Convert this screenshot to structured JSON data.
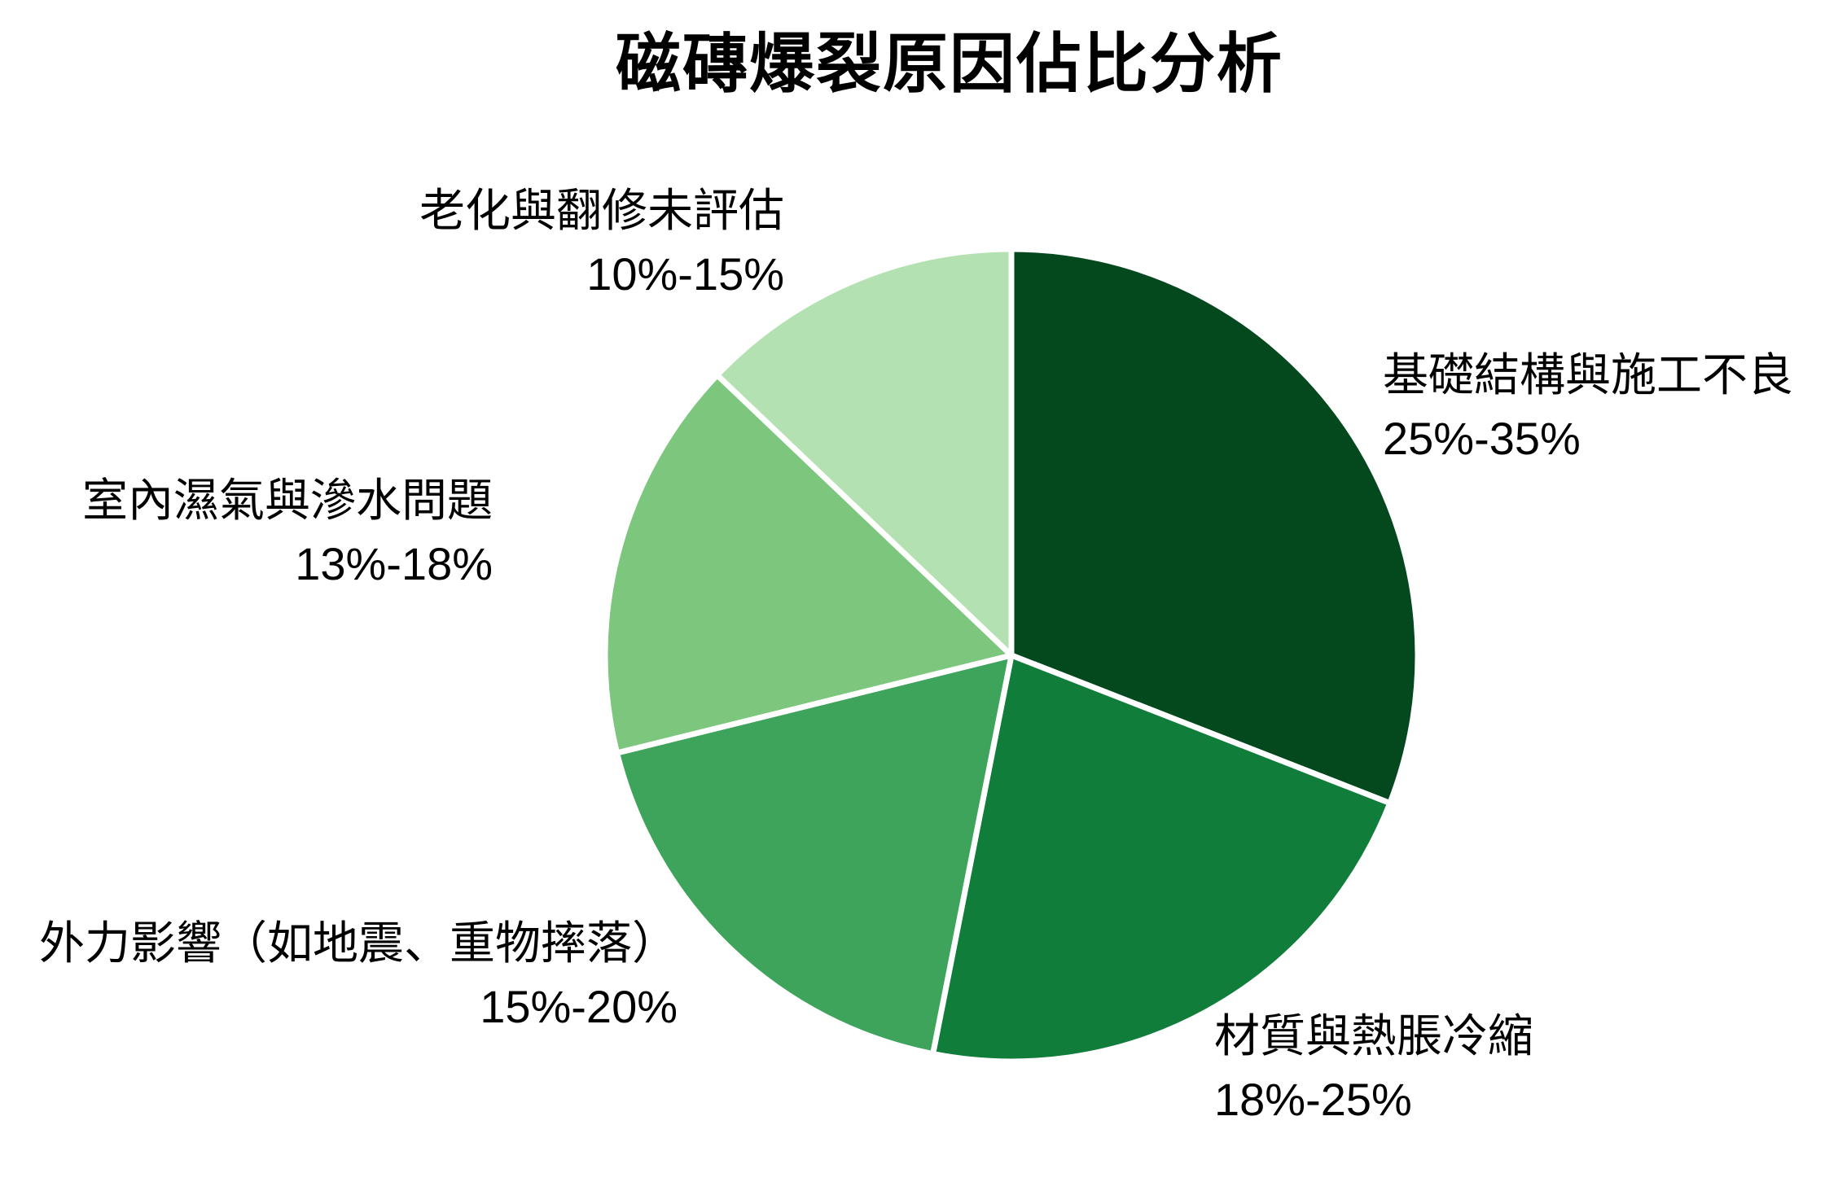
{
  "chart_data": {
    "type": "pie",
    "title": "磁磚爆裂原因佔比分析",
    "legend": "none",
    "background": "#ffffff",
    "slice_border_color": "#ffffff",
    "start_angle_deg": 0,
    "direction": "clockwise",
    "slices": [
      {
        "label": "基礎結構與施工不良",
        "range": "25%-35%",
        "value_mid": 30,
        "color": "#03491d"
      },
      {
        "label": "材質與熱脹冷縮",
        "range": "18%-25%",
        "value_mid": 21.5,
        "color": "#107d3b"
      },
      {
        "label": "外力影響（如地震、重物摔落）",
        "range": "15%-20%",
        "value_mid": 17.5,
        "color": "#3ea45c"
      },
      {
        "label": "室內濕氣與滲水問題",
        "range": "13%-18%",
        "value_mid": 15.5,
        "color": "#7cc67e"
      },
      {
        "label": "老化與翻修未評估",
        "range": "10%-15%",
        "value_mid": 12.5,
        "color": "#b4e1b1"
      }
    ]
  }
}
